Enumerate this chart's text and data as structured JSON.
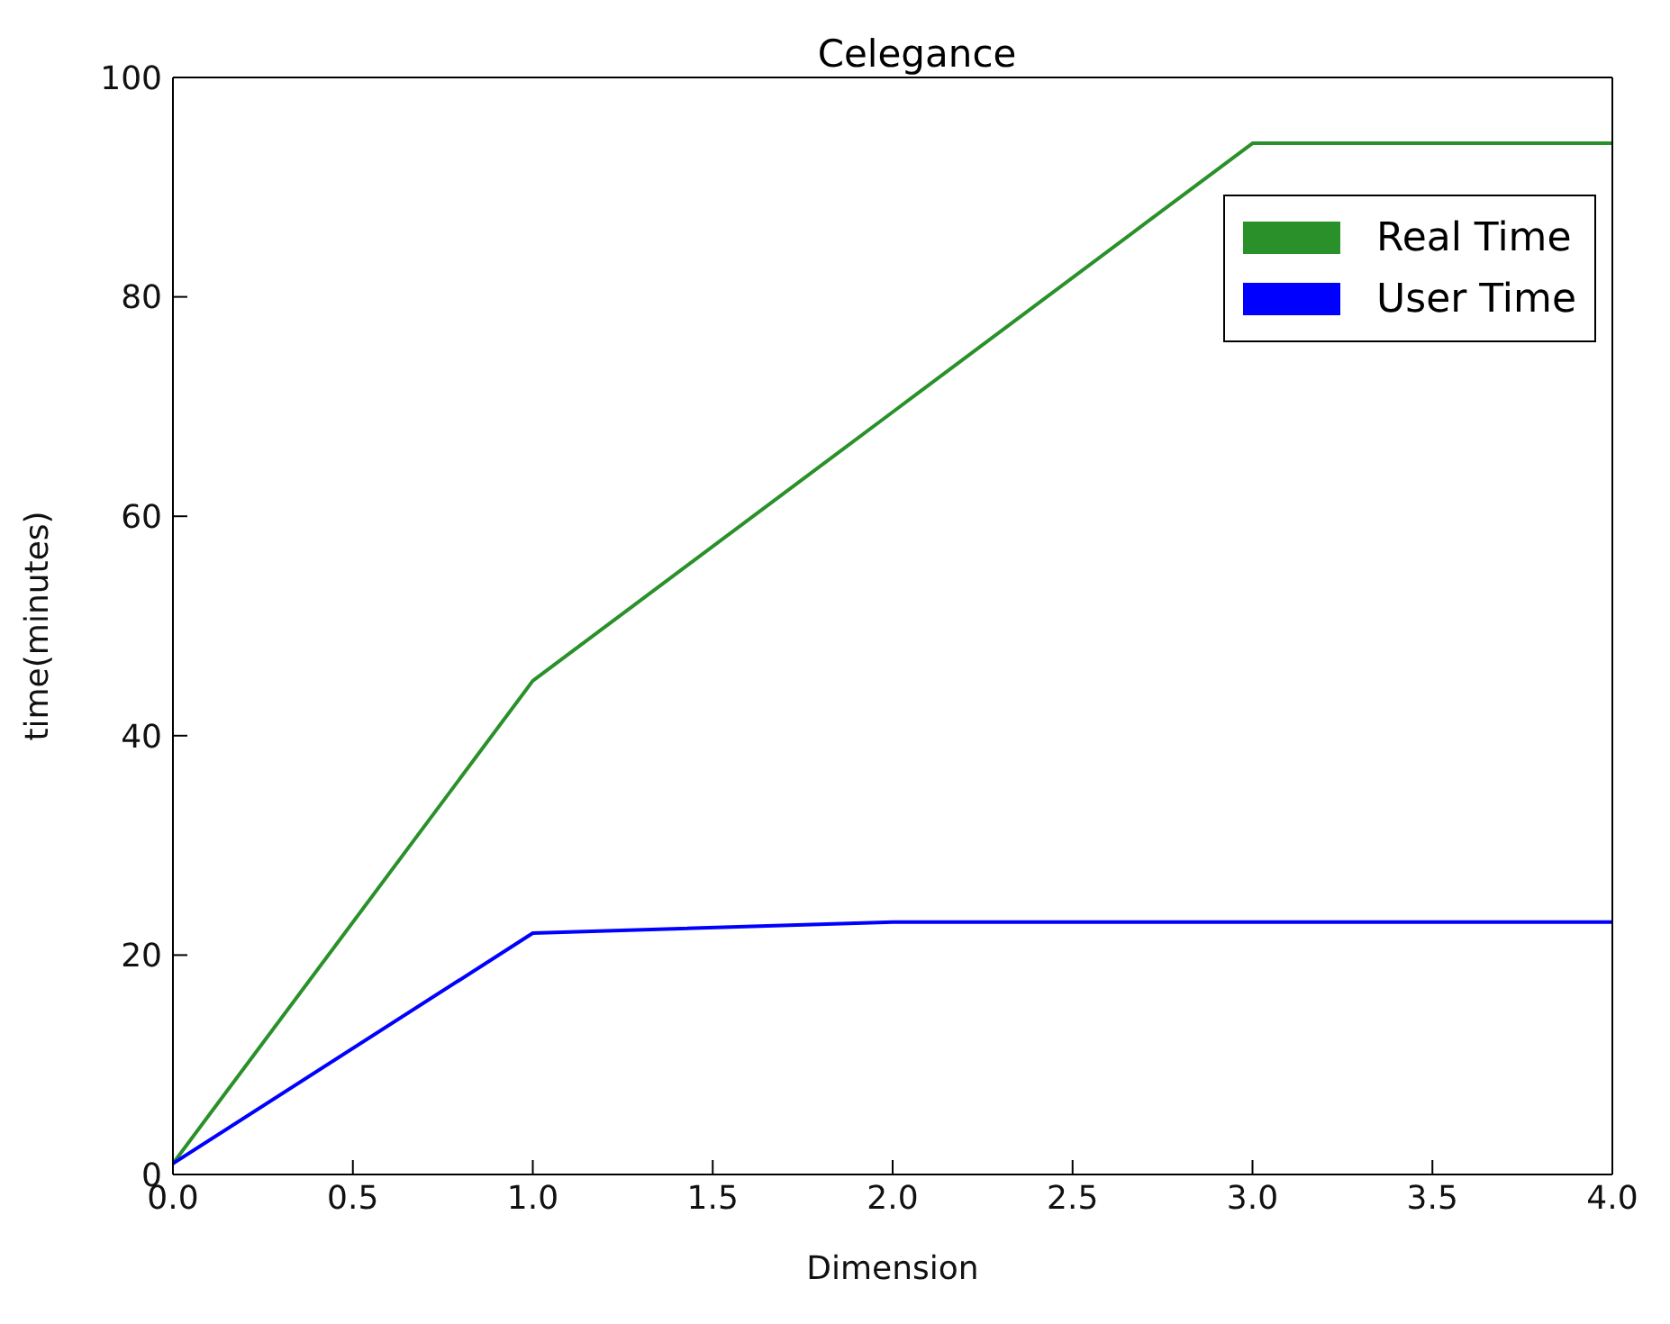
{
  "chart_data": {
    "type": "line",
    "title": "Celegance",
    "xlabel": "Dimension",
    "ylabel": "time(minutes)",
    "x": [
      0,
      1,
      2,
      3,
      4
    ],
    "series": [
      {
        "name": "Real Time",
        "color": "#2a912a",
        "values": [
          1,
          45,
          69.5,
          94,
          94
        ]
      },
      {
        "name": "User Time",
        "color": "#0000ff",
        "values": [
          1,
          22,
          23,
          23,
          23
        ]
      }
    ],
    "xlim": [
      0,
      4
    ],
    "xticks": [
      {
        "value": 0,
        "label": "0.0"
      },
      {
        "value": 0.5,
        "label": "0.5"
      },
      {
        "value": 1,
        "label": "1.0"
      },
      {
        "value": 1.5,
        "label": "1.5"
      },
      {
        "value": 2,
        "label": "2.0"
      },
      {
        "value": 2.5,
        "label": "2.5"
      },
      {
        "value": 3,
        "label": "3.0"
      },
      {
        "value": 3.5,
        "label": "3.5"
      },
      {
        "value": 4,
        "label": "4.0"
      }
    ],
    "ylim": [
      0,
      100
    ],
    "yticks": [
      0,
      20,
      40,
      60,
      80,
      100
    ],
    "legend": "top right",
    "grid": false,
    "marker": "none",
    "line_style": "solid"
  }
}
